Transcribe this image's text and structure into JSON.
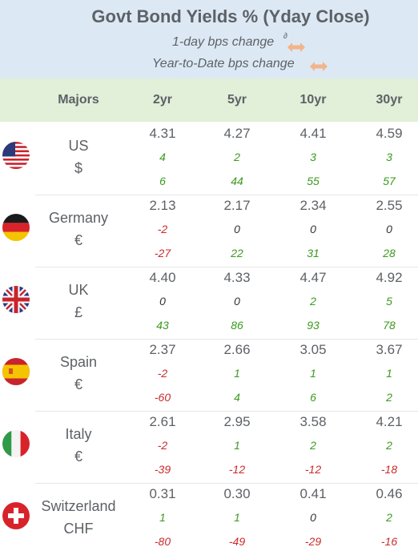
{
  "header": {
    "title": "Govt Bond Yields %  (Yday Close)",
    "subtitle_daily": "1-day bps change",
    "subtitle_daily_sup": "∂",
    "subtitle_ytd": "Year-to-Date bps change",
    "arrow_icon": "double-arrow-icon",
    "arrow_color": "#f2b48a"
  },
  "columns": {
    "majors": "Majors",
    "tenors": [
      "2yr",
      "5yr",
      "10yr",
      "30yr"
    ]
  },
  "colors": {
    "header_bg": "#dce9f5",
    "column_header_bg": "#e2efd9",
    "positive": "#3a9a1e",
    "negative": "#cc2a2a",
    "zero": "#333333"
  },
  "rows": [
    {
      "country": "US",
      "currency": "$",
      "flag_icon": "us-flag-icon",
      "yields": [
        "4.31",
        "4.27",
        "4.41",
        "4.59"
      ],
      "daily": [
        "4",
        "2",
        "3",
        "3"
      ],
      "ytd": [
        "6",
        "44",
        "55",
        "57"
      ]
    },
    {
      "country": "Germany",
      "currency": "€",
      "flag_icon": "germany-flag-icon",
      "yields": [
        "2.13",
        "2.17",
        "2.34",
        "2.55"
      ],
      "daily": [
        "-2",
        "0",
        "0",
        "0"
      ],
      "ytd": [
        "-27",
        "22",
        "31",
        "28"
      ]
    },
    {
      "country": "UK",
      "currency": "£",
      "flag_icon": "uk-flag-icon",
      "yields": [
        "4.40",
        "4.33",
        "4.47",
        "4.92"
      ],
      "daily": [
        "0",
        "0",
        "2",
        "5"
      ],
      "ytd": [
        "43",
        "86",
        "93",
        "78"
      ]
    },
    {
      "country": "Spain",
      "currency": "€",
      "flag_icon": "spain-flag-icon",
      "yields": [
        "2.37",
        "2.66",
        "3.05",
        "3.67"
      ],
      "daily": [
        "-2",
        "1",
        "1",
        "1"
      ],
      "ytd": [
        "-60",
        "4",
        "6",
        "2"
      ]
    },
    {
      "country": "Italy",
      "currency": "€",
      "flag_icon": "italy-flag-icon",
      "yields": [
        "2.61",
        "2.95",
        "3.58",
        "4.21"
      ],
      "daily": [
        "-2",
        "1",
        "2",
        "2"
      ],
      "ytd": [
        "-39",
        "-12",
        "-12",
        "-18"
      ]
    },
    {
      "country": "Switzerland",
      "currency": "CHF",
      "flag_icon": "switzerland-flag-icon",
      "yields": [
        "0.31",
        "0.30",
        "0.41",
        "0.46"
      ],
      "daily": [
        "1",
        "1",
        "0",
        "2"
      ],
      "ytd": [
        "-80",
        "-49",
        "-29",
        "-16"
      ]
    }
  ]
}
